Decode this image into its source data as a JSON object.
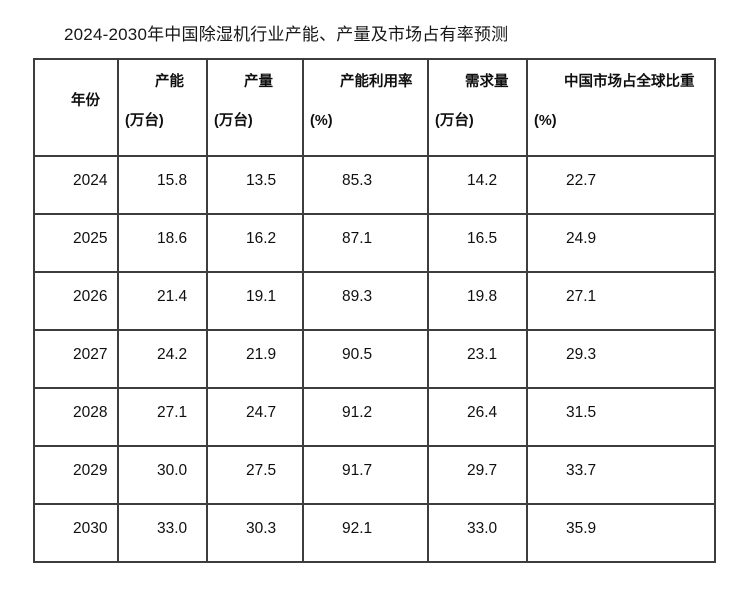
{
  "title": "2024-2030年中国除湿机行业产能、产量及市场占有率预测",
  "chart_data": {
    "type": "table",
    "title": "2024-2030年中国除湿机行业产能、产量及市场占有率预测",
    "columns": [
      {
        "name": "年份",
        "unit": ""
      },
      {
        "name": "产能",
        "unit": "(万台)"
      },
      {
        "name": "产量",
        "unit": "(万台)"
      },
      {
        "name": "产能利用率",
        "unit": "(%)"
      },
      {
        "name": "需求量",
        "unit": "(万台)"
      },
      {
        "name": "中国市场占全球比重",
        "unit": "(%)"
      }
    ],
    "rows": [
      [
        "2024",
        "15.8",
        "13.5",
        "85.3",
        "14.2",
        "22.7"
      ],
      [
        "2025",
        "18.6",
        "16.2",
        "87.1",
        "16.5",
        "24.9"
      ],
      [
        "2026",
        "21.4",
        "19.1",
        "89.3",
        "19.8",
        "27.1"
      ],
      [
        "2027",
        "24.2",
        "21.9",
        "90.5",
        "23.1",
        "29.3"
      ],
      [
        "2028",
        "27.1",
        "24.7",
        "91.2",
        "26.4",
        "31.5"
      ],
      [
        "2029",
        "30.0",
        "27.5",
        "91.7",
        "29.7",
        "33.7"
      ],
      [
        "2030",
        "33.0",
        "30.3",
        "92.1",
        "33.0",
        "35.9"
      ]
    ]
  },
  "colors": {
    "background": "#ffffff",
    "border": "#3d3d3d",
    "text": "#0f0f0f"
  }
}
